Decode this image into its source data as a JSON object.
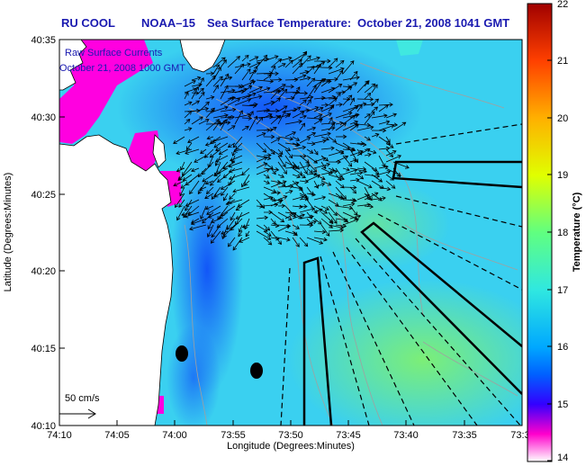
{
  "title": {
    "org": "RU COOL",
    "satellite": "NOAA–15",
    "product": "Sea Surface Temperature:",
    "datetime": "October 21, 2008 1041 GMT"
  },
  "overlay": {
    "line1": "Raw Surface Currents",
    "line2": "October 21, 2008 1000 GMT"
  },
  "axes": {
    "xlabel": "Longitude (Degrees:Minutes)",
    "ylabel": "Latitude (Degrees:Minutes)",
    "xticks": [
      "74:10",
      "74:05",
      "74:00",
      "73:55",
      "73:50",
      "73:45",
      "73:40",
      "73:35",
      "73:3"
    ],
    "yticks": [
      "40:35",
      "40:30",
      "40:25",
      "40:20",
      "40:15",
      "40:10"
    ]
  },
  "scale": {
    "label": "50 cm/s"
  },
  "colorbar": {
    "label": "Temperature (°C)",
    "ticks": [
      "22",
      "21",
      "20",
      "19",
      "18",
      "17",
      "16",
      "15",
      "14"
    ],
    "min": 14,
    "max": 22,
    "colors": {
      "14": "#ffffff",
      "14.5": "#ff00cc",
      "15": "#3300ff",
      "15.5": "#0060ff",
      "16": "#00a8ff",
      "17": "#30e8e0",
      "18": "#60ff80",
      "19": "#e0ff00",
      "20": "#ffb000",
      "21": "#ff4000",
      "22": "#a00000"
    }
  },
  "colors": {
    "land": "#ffffff",
    "title_text": "#1a1ab0",
    "water_base": "#3ad0f0",
    "nearshore": "#2a50f0",
    "missing_data": "#ff00e0",
    "vectors": "#000000",
    "bathymetry": "#a0a0a0"
  }
}
